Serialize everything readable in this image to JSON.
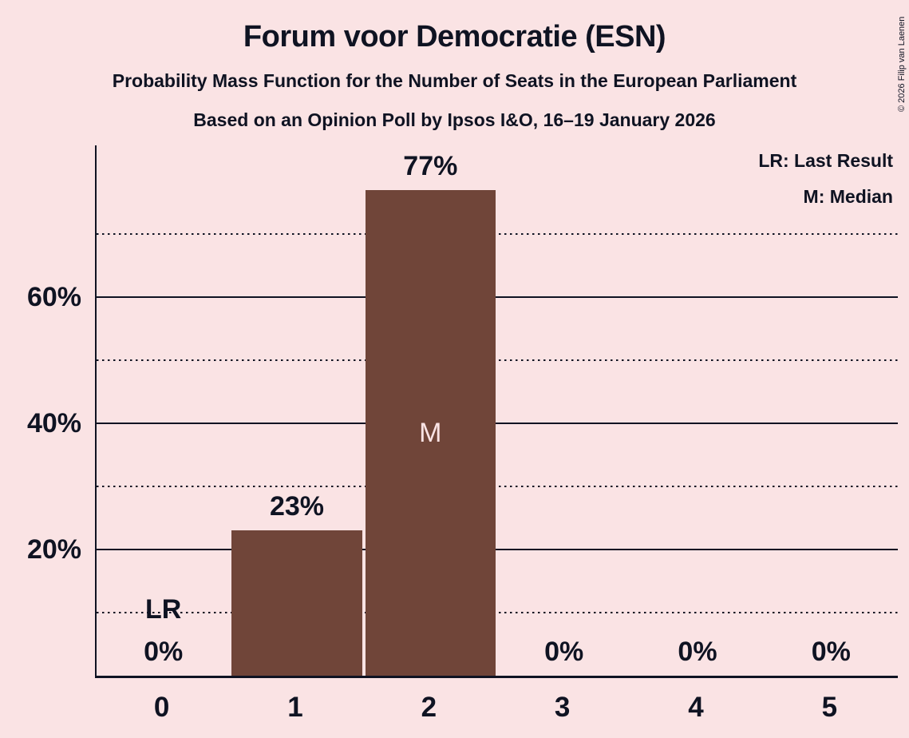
{
  "title": "Forum voor Democratie (ESN)",
  "subtitle1": "Probability Mass Function for the Number of Seats in the European Parliament",
  "subtitle2": "Based on an Opinion Poll by Ipsos I&O, 16–19 January 2026",
  "legend": {
    "lr": "LR: Last Result",
    "m": "M: Median"
  },
  "copyright": "© 2026 Filip van Laenen",
  "colors": {
    "background": "#FAE3E4",
    "bar": "#704539",
    "text": "#0F1322"
  },
  "chart_data": {
    "type": "bar",
    "title": "Forum voor Democratie (ESN)",
    "categories": [
      "0",
      "1",
      "2",
      "3",
      "4",
      "5"
    ],
    "values": [
      0,
      23,
      77,
      0,
      0,
      0
    ],
    "value_labels": [
      "0%",
      "23%",
      "77%",
      "0%",
      "0%",
      "0%"
    ],
    "y_axis_ticks": [
      "20%",
      "40%",
      "60%"
    ],
    "y_solid_gridlines": [
      20,
      40,
      60
    ],
    "y_dotted_gridlines": [
      10,
      30,
      50,
      70
    ],
    "ylim": [
      0,
      84
    ],
    "grid": true,
    "legend_position": "top-right",
    "median_seat": "2",
    "median_marker": "M",
    "last_result_seat": "0",
    "last_result_marker": "LR"
  }
}
